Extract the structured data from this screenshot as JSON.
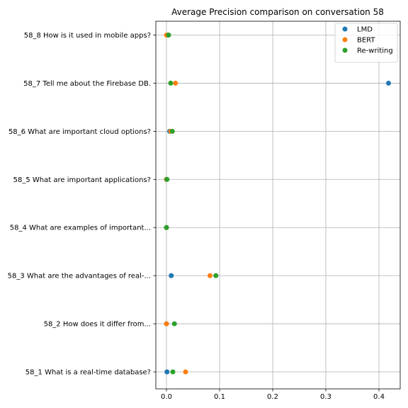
{
  "chart_data": {
    "type": "scatter",
    "title": "Average Precision comparison on conversation 58",
    "xlabel": "",
    "ylabel": "",
    "xlim": [
      -0.02,
      0.44
    ],
    "xticks": [
      0.0,
      0.1,
      0.2,
      0.3,
      0.4
    ],
    "xtick_labels": [
      "0.0",
      "0.1",
      "0.2",
      "0.3",
      "0.4"
    ],
    "categories": [
      "58_1 What is a real-time database?",
      "58_2 How does it differ from...",
      "58_3 What are the advantages of real-...",
      "58_4 What are examples of important...",
      "58_5 What are important applications?",
      "58_6 What are important cloud options?",
      "58_7 Tell me about the Firebase DB.",
      "58_8 How is it used in mobile apps?"
    ],
    "grid": true,
    "legend_position": "top-right",
    "series": [
      {
        "name": "LMD",
        "color": "#1f77b4",
        "values": [
          0.001,
          0.0,
          0.009,
          0.0,
          0.0,
          0.006,
          0.418,
          0.002
        ]
      },
      {
        "name": "BERT",
        "color": "#ff7f0e",
        "values": [
          0.036,
          0.0,
          0.082,
          0.0,
          0.0,
          0.008,
          0.017,
          0.0
        ]
      },
      {
        "name": "Re-writing",
        "color": "#2ca02c",
        "values": [
          0.012,
          0.015,
          0.093,
          0.0,
          0.001,
          0.011,
          0.008,
          0.004
        ]
      }
    ]
  }
}
